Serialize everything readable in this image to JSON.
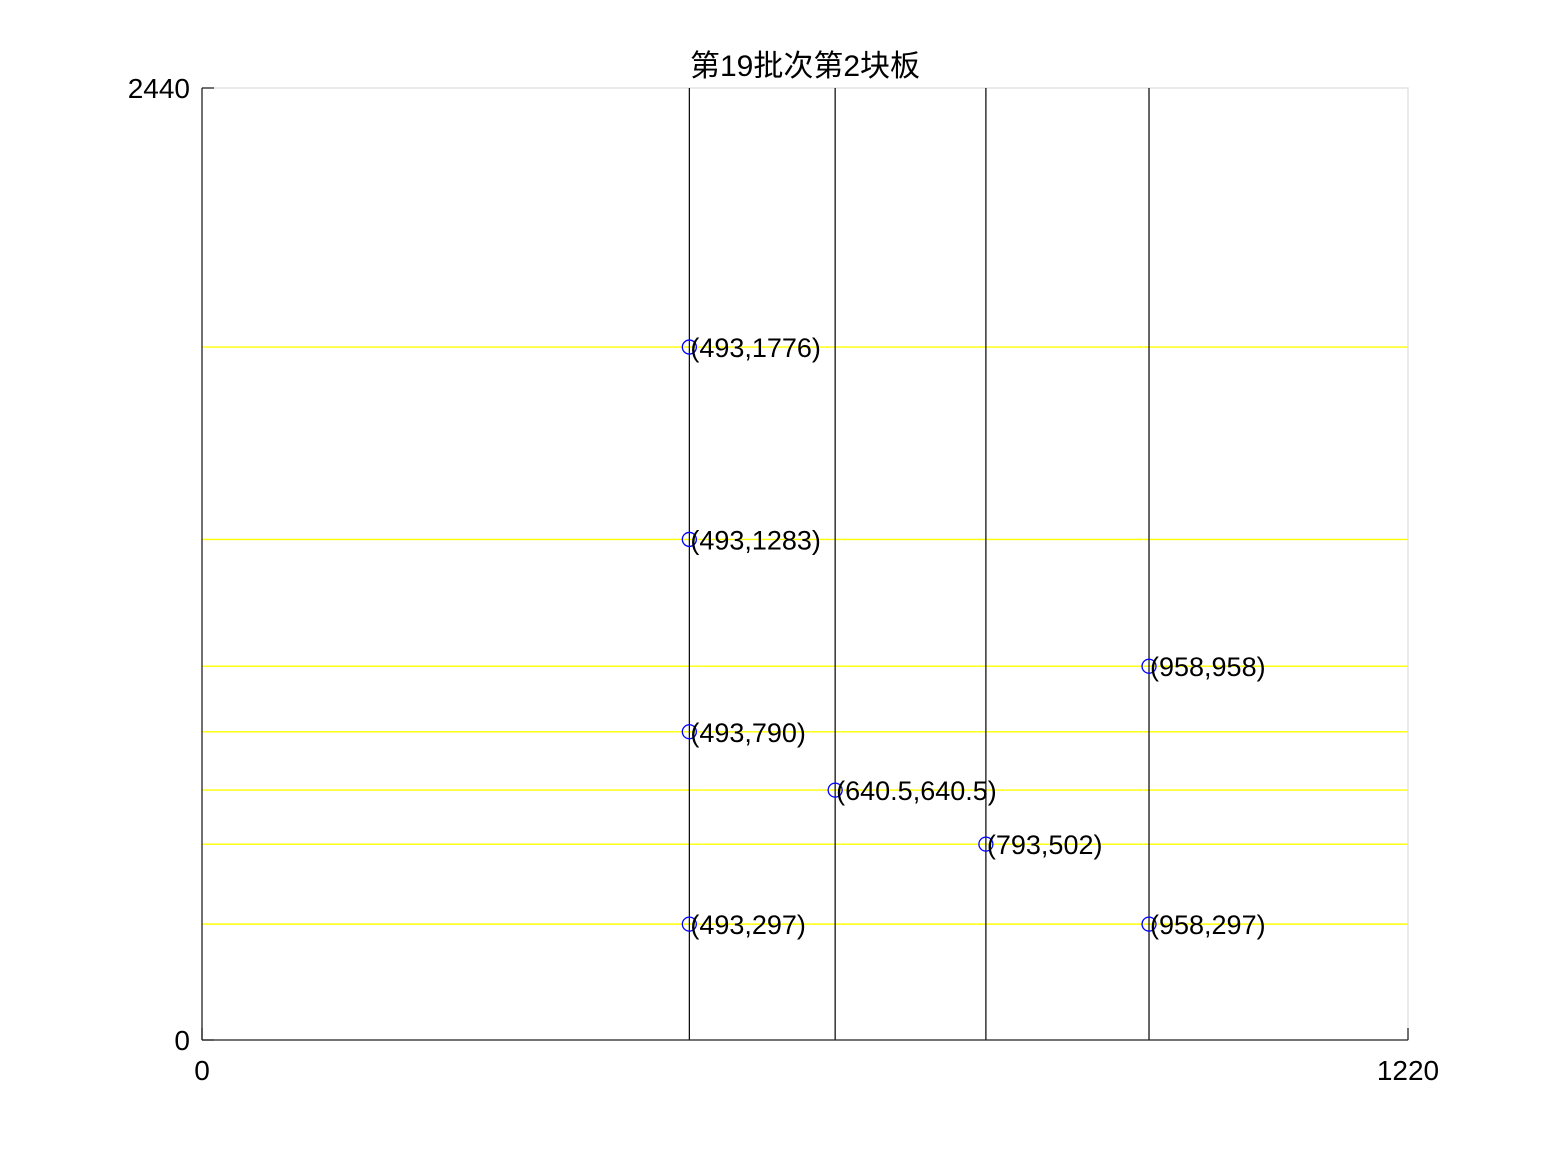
{
  "chart_data": {
    "type": "scatter",
    "title": "第19批次第2块板",
    "xlabel": "",
    "ylabel": "",
    "xlim": [
      0,
      1220
    ],
    "ylim": [
      0,
      2440
    ],
    "x_ticks": [
      "0",
      "1220"
    ],
    "y_ticks": [
      "0",
      "2440"
    ],
    "grid": false,
    "vertical_lines": [
      493,
      640.5,
      793,
      958
    ],
    "vertical_line_color": "#000000",
    "horizontal_lines": [
      1776,
      1283,
      958,
      790,
      640.5,
      502,
      297
    ],
    "horizontal_line_color": "#ffff00",
    "marker_color": "#0000ff",
    "points": [
      {
        "x": 493,
        "y": 1776,
        "label": "(493,1776)"
      },
      {
        "x": 493,
        "y": 1283,
        "label": "(493,1283)"
      },
      {
        "x": 958,
        "y": 958,
        "label": "(958,958)"
      },
      {
        "x": 493,
        "y": 790,
        "label": "(493,790)"
      },
      {
        "x": 640.5,
        "y": 640.5,
        "label": "(640.5,640.5)"
      },
      {
        "x": 793,
        "y": 502,
        "label": "(793,502)"
      },
      {
        "x": 493,
        "y": 297,
        "label": "(493,297)"
      },
      {
        "x": 958,
        "y": 297,
        "label": "(958,297)"
      }
    ]
  }
}
